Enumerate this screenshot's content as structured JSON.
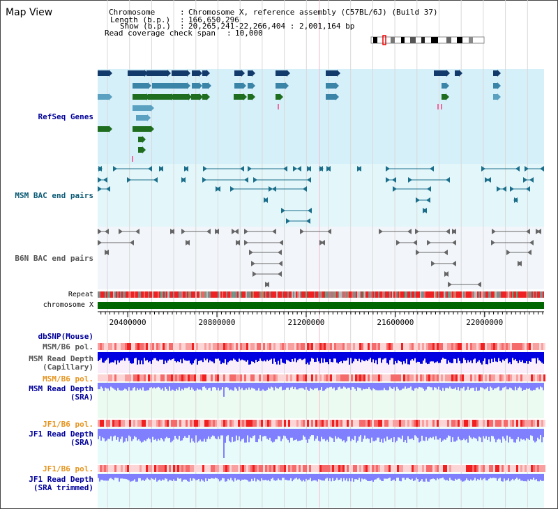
{
  "view": {
    "title": "Map View"
  },
  "header": {
    "chromosome_label": "Chromosome",
    "chromosome_value": "Chromosome X, reference assembly (C57BL/6J) (Build 37)",
    "length_label": "Length (b.p.)",
    "length_value": "166,650,296",
    "show_label": "Show (b.p.)",
    "show_value": "20,265,241-22,266,404 : 2,001,164 bp",
    "coverage_label": "Read coverage check span",
    "coverage_value": "10,000"
  },
  "tracks": {
    "refseq": "RefSeq Genes",
    "msm_bac": "MSM BAC end pairs",
    "b6n_bac": "B6N BAC end pairs",
    "repeat": "Repeat",
    "chromosome": "chromosome X",
    "dbsnp": "dbSNP(Mouse)",
    "msm_pol1": "MSM/B6 pol.",
    "msm_depth_cap_1": "MSM Read Depth",
    "msm_depth_cap_2": "(Capillary)",
    "msm_pol2": "MSM/B6 pol.",
    "msm_depth_sra_1": "MSM Read Depth",
    "msm_depth_sra_2": "(SRA)",
    "jf1_pol1": "JF1/B6 pol.",
    "jf1_depth_sra_1": "JF1 Read Depth",
    "jf1_depth_sra_2": "(SRA)",
    "jf1_pol2": "JF1/B6 pol.",
    "jf1_depth_trim_1": "JF1 Read Depth",
    "jf1_depth_trim_2": "(SRA trimmed)"
  },
  "axis": {
    "ticks": [
      "20400000",
      "20800000",
      "21200000",
      "21600000",
      "22000000"
    ],
    "tick_values": [
      20400000,
      20800000,
      21200000,
      21600000,
      22000000
    ],
    "range": [
      20265241,
      22266404
    ]
  },
  "colors": {
    "refseq_bg": "#d6f0fa",
    "msm_bg": "#e3f7fb",
    "b6n_bg": "#f2f5fa",
    "chromosome_bar": "#006600",
    "snp_high": "#ff3333",
    "depth_blue": "#0000e0",
    "depth_lavender": "#8080ff",
    "sra_bg": "#ecfbf1",
    "jf1_bg": "#e8fbfb",
    "capillary_bg": "#faeefa"
  }
}
